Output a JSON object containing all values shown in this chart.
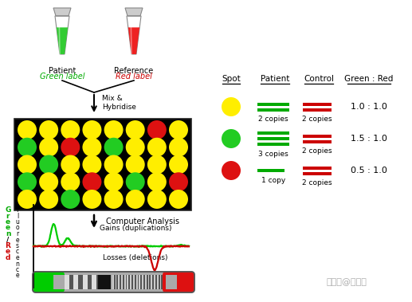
{
  "bg_color": "#ffffff",
  "grid_rows": 5,
  "grid_cols": 8,
  "dot_colors": [
    [
      "yellow",
      "yellow",
      "yellow",
      "yellow",
      "yellow",
      "yellow",
      "red",
      "yellow"
    ],
    [
      "green",
      "yellow",
      "red",
      "yellow",
      "green",
      "yellow",
      "yellow",
      "yellow"
    ],
    [
      "yellow",
      "green",
      "yellow",
      "yellow",
      "yellow",
      "yellow",
      "yellow",
      "yellow"
    ],
    [
      "green",
      "yellow",
      "yellow",
      "red",
      "yellow",
      "green",
      "yellow",
      "red"
    ],
    [
      "yellow",
      "yellow",
      "green",
      "yellow",
      "yellow",
      "yellow",
      "yellow",
      "yellow"
    ]
  ],
  "legend_ratios": [
    "1.0 : 1.0",
    "1.5 : 1.0",
    "0.5 : 1.0"
  ],
  "legend_patient_copies": [
    2,
    3,
    1
  ],
  "legend_control_copies": [
    2,
    2,
    2
  ],
  "watermark": "搜狐号@基因瓜"
}
